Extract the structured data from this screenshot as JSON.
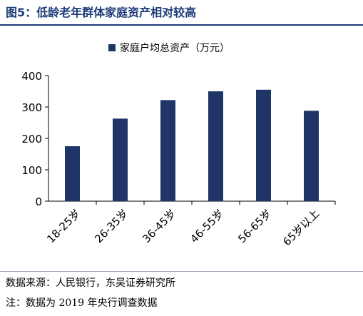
{
  "figure": {
    "title": "图5：低龄老年群体家庭资产相对较高"
  },
  "chart_data": {
    "type": "bar",
    "categories": [
      "18-25岁",
      "26-35岁",
      "36-45岁",
      "46-55岁",
      "56-65岁",
      "65岁以上"
    ],
    "series": [
      {
        "name": "家庭户均总资产（万元）",
        "values": [
          175,
          263,
          322,
          350,
          355,
          288
        ]
      }
    ],
    "ylim": [
      0,
      400
    ],
    "yticks": [
      0,
      100,
      200,
      300,
      400
    ],
    "grid": false,
    "legend_position": "top-center",
    "bar_color": "#1f3566"
  },
  "footer": {
    "source": "数据来源：人民银行，东吴证券研究所",
    "note": "注：数据为 2019 年央行调查数据"
  }
}
